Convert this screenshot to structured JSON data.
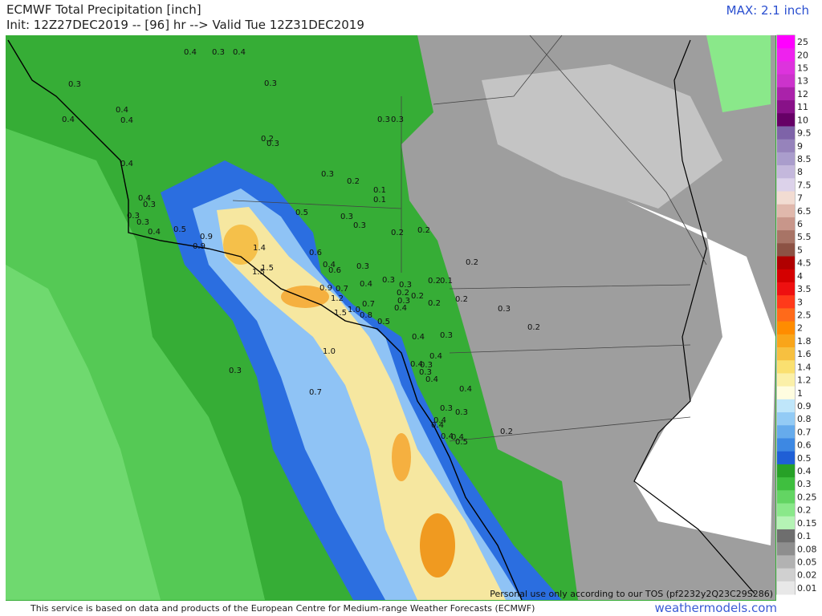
{
  "header": {
    "title": "ECMWF Total Precipitation [inch]",
    "subtitle": "Init: 12Z27DEC2019 -- [96] hr --> Valid Tue 12Z31DEC2019",
    "max": "MAX: 2.1 inch"
  },
  "footer": {
    "text": "This service is based on data and products of the European Centre for Medium-range Weather Forecasts (ECMWF)",
    "site": "weathermodels.com",
    "notice": "Personal use only according to our TOS (pf2232y2Q23C29S286)"
  },
  "colorbar": {
    "labels": [
      "25",
      "20",
      "15",
      "13",
      "12",
      "11",
      "10",
      "9.5",
      "9",
      "8.5",
      "8",
      "7.5",
      "7",
      "6.5",
      "6",
      "5.5",
      "5",
      "4.5",
      "4",
      "3.5",
      "3",
      "2.5",
      "2",
      "1.8",
      "1.6",
      "1.4",
      "1.2",
      "1",
      "0.9",
      "0.8",
      "0.7",
      "0.6",
      "0.5",
      "0.4",
      "0.3",
      "0.25",
      "0.2",
      "0.15",
      "0.1",
      "0.08",
      "0.05",
      "0.02",
      "0.01"
    ]
  },
  "map": {
    "labels": [
      "0.4",
      "0.3",
      "0.4",
      "0.3",
      "0.3",
      "0.4",
      "0.4",
      "0.4",
      "0.3",
      "0.3",
      "0.2",
      "0.3",
      "0.4",
      "0.3",
      "0.2",
      "0.1",
      "0.1",
      "0.4",
      "0.3",
      "0.3",
      "0.3",
      "0.5",
      "0.3",
      "0.3",
      "0.2",
      "0.2",
      "0.4",
      "0.5",
      "0.9",
      "0.9",
      "1.4",
      "0.6",
      "1.5",
      "1.5",
      "0.4",
      "0.6",
      "0.3",
      "0.3",
      "0.4",
      "0.2",
      "0.2",
      "0.1",
      "0.9",
      "0.7",
      "0.3",
      "0.2",
      "0.2",
      "0.2",
      "0.2",
      "1.2",
      "0.3",
      "0.7",
      "0.3",
      "1.5",
      "1.0",
      "0.8",
      "0.5",
      "0.4",
      "0.2",
      "0.3",
      "0.4",
      "0.4",
      "1.0",
      "0.4",
      "0.3",
      "0.3",
      "0.4",
      "0.4",
      "0.3",
      "0.7",
      "0.3",
      "0.3",
      "0.4",
      "0.4",
      "0.2",
      "0.4",
      "0.4",
      "0.5"
    ]
  }
}
